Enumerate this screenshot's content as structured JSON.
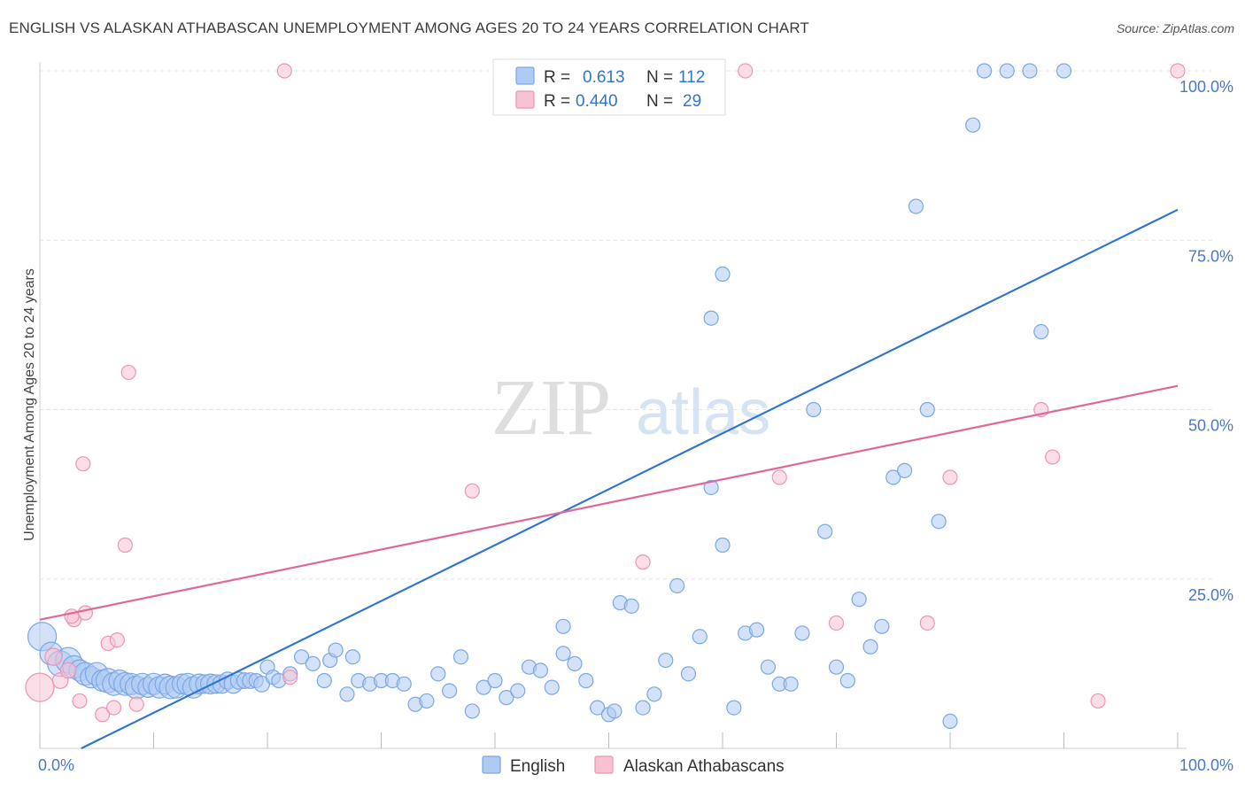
{
  "title": "ENGLISH VS ALASKAN ATHABASCAN UNEMPLOYMENT AMONG AGES 20 TO 24 YEARS CORRELATION CHART",
  "source": "Source: ZipAtlas.com",
  "watermark": {
    "part1": "ZIP",
    "part2": "atlas"
  },
  "colors": {
    "english_fill": "#aecbf3",
    "english_stroke": "#7aa7e6",
    "english_line": "#2f74d0",
    "alaskan_fill": "#f7c3d3",
    "alaskan_stroke": "#ef94b2",
    "alaskan_line": "#e0679a",
    "axis_text": "#4a78c5"
  },
  "legend": {
    "rows": [
      {
        "r_label": "R =",
        "r_value": "0.613",
        "n_label": "N =",
        "n_value": "112"
      },
      {
        "r_label": "R =",
        "r_value": "0.440",
        "n_label": "N =",
        "n_value": "29"
      }
    ]
  },
  "bottom_legend": [
    "English",
    "Alaskan Athabascans"
  ],
  "chart_data": {
    "type": "scatter",
    "title": "ENGLISH VS ALASKAN ATHABASCAN UNEMPLOYMENT AMONG AGES 20 TO 24 YEARS CORRELATION CHART",
    "xlabel": "",
    "ylabel": "Unemployment Among Ages 20 to 24 years",
    "xlim": [
      0,
      100
    ],
    "ylim": [
      0,
      100
    ],
    "x_tick_labels": [
      "0.0%",
      "100.0%"
    ],
    "y_tick_labels": [
      "25.0%",
      "50.0%",
      "75.0%",
      "100.0%"
    ],
    "y_ticks": [
      25,
      50,
      75,
      100
    ],
    "grid": true,
    "legend_position": "top-center",
    "series": [
      {
        "name": "English",
        "r": 0.613,
        "n": 112,
        "trend": {
          "x": [
            0,
            100
          ],
          "y": [
            -3,
            79.5
          ]
        },
        "points": [
          [
            0.2,
            16.5,
            2
          ],
          [
            1,
            14,
            1.6
          ],
          [
            1.8,
            12.5,
            1.8
          ],
          [
            2.5,
            13,
            1.8
          ],
          [
            3,
            12,
            1.6
          ],
          [
            3.5,
            11.5,
            1.5
          ],
          [
            4,
            11,
            1.6
          ],
          [
            4.5,
            10.5,
            1.5
          ],
          [
            5,
            11,
            1.6
          ],
          [
            5.5,
            10,
            1.5
          ],
          [
            6,
            10,
            1.7
          ],
          [
            6.5,
            9.5,
            1.6
          ],
          [
            7,
            10,
            1.5
          ],
          [
            7.5,
            9.5,
            1.6
          ],
          [
            8,
            9.5,
            1.5
          ],
          [
            8.5,
            9,
            1.6
          ],
          [
            9,
            9.5,
            1.5
          ],
          [
            9.5,
            9,
            1.4
          ],
          [
            10,
            9.5,
            1.5
          ],
          [
            10.5,
            9,
            1.5
          ],
          [
            11,
            9.5,
            1.4
          ],
          [
            11.5,
            9,
            1.6
          ],
          [
            12,
            9,
            1.5
          ],
          [
            12.5,
            9.5,
            1.4
          ],
          [
            13,
            9.5,
            1.5
          ],
          [
            13.5,
            9,
            1.5
          ],
          [
            14,
            9.5,
            1.4
          ],
          [
            14.5,
            9.5,
            1.3
          ],
          [
            15,
            9.5,
            1.4
          ],
          [
            15.5,
            9.5,
            1.3
          ],
          [
            16,
            9.5,
            1.3
          ],
          [
            16.5,
            10,
            1.2
          ],
          [
            17,
            9.5,
            1.3
          ],
          [
            17.5,
            10,
            1.2
          ],
          [
            18,
            10,
            1.1
          ],
          [
            18.5,
            10,
            1.1
          ],
          [
            19,
            10,
            1
          ],
          [
            19.5,
            9.5,
            1.1
          ],
          [
            20,
            12,
            1
          ],
          [
            20.5,
            10.5,
            1
          ],
          [
            21,
            10,
            1
          ],
          [
            22,
            11,
            1
          ],
          [
            23,
            13.5,
            1
          ],
          [
            24,
            12.5,
            1
          ],
          [
            25,
            10,
            1
          ],
          [
            25.5,
            13,
            1
          ],
          [
            26,
            14.5,
            1
          ],
          [
            27,
            8,
            1
          ],
          [
            27.5,
            13.5,
            1
          ],
          [
            28,
            10,
            1
          ],
          [
            29,
            9.5,
            1
          ],
          [
            30,
            10,
            1
          ],
          [
            31,
            10,
            1
          ],
          [
            32,
            9.5,
            1
          ],
          [
            33,
            6.5,
            1
          ],
          [
            34,
            7,
            1
          ],
          [
            35,
            11,
            1
          ],
          [
            36,
            8.5,
            1
          ],
          [
            37,
            13.5,
            1
          ],
          [
            38,
            5.5,
            1
          ],
          [
            39,
            9,
            1
          ],
          [
            40,
            10,
            1
          ],
          [
            41,
            7.5,
            1
          ],
          [
            42,
            8.5,
            1
          ],
          [
            43,
            12,
            1
          ],
          [
            44,
            11.5,
            1
          ],
          [
            45,
            9,
            1
          ],
          [
            46,
            18,
            1
          ],
          [
            47,
            12.5,
            1
          ],
          [
            48,
            10,
            1
          ],
          [
            49,
            6,
            1
          ],
          [
            50,
            5,
            1
          ],
          [
            50.5,
            5.5,
            1
          ],
          [
            51,
            21.5,
            1
          ],
          [
            52,
            21,
            1
          ],
          [
            53,
            6,
            1
          ],
          [
            54,
            8,
            1
          ],
          [
            55,
            13,
            1
          ],
          [
            56,
            24,
            1
          ],
          [
            57,
            11,
            1
          ],
          [
            58,
            16.5,
            1
          ],
          [
            59,
            38.5,
            1
          ],
          [
            60,
            30,
            1
          ],
          [
            61,
            6,
            1
          ],
          [
            62,
            17,
            1
          ],
          [
            63,
            17.5,
            1
          ],
          [
            64,
            12,
            1
          ],
          [
            65,
            9.5,
            1
          ],
          [
            66,
            9.5,
            1
          ],
          [
            67,
            17,
            1
          ],
          [
            68,
            50,
            1
          ],
          [
            69,
            32,
            1
          ],
          [
            70,
            12,
            1
          ],
          [
            71,
            10,
            1
          ],
          [
            72,
            22,
            1
          ],
          [
            73,
            15,
            1
          ],
          [
            74,
            18,
            1
          ],
          [
            75,
            40,
            1
          ],
          [
            76,
            41,
            1
          ],
          [
            77,
            80,
            1
          ],
          [
            78,
            50,
            1
          ],
          [
            79,
            33.5,
            1
          ],
          [
            80,
            4,
            1
          ],
          [
            82,
            92,
            1
          ],
          [
            83,
            100,
            1
          ],
          [
            85,
            100,
            1
          ],
          [
            87,
            100,
            1
          ],
          [
            90,
            100,
            1
          ],
          [
            88,
            61.5,
            1
          ],
          [
            59,
            63.5,
            1
          ],
          [
            60,
            70,
            1
          ],
          [
            46,
            14,
            1
          ]
        ]
      },
      {
        "name": "Alaskan Athabascans",
        "r": 0.44,
        "n": 29,
        "trend": {
          "x": [
            0,
            100
          ],
          "y": [
            19,
            53.5
          ]
        },
        "points": [
          [
            0,
            9,
            2
          ],
          [
            1.2,
            13.5,
            1.2
          ],
          [
            1.8,
            10,
            1.1
          ],
          [
            2.5,
            11.5,
            1.1
          ],
          [
            3,
            19,
            1
          ],
          [
            3.5,
            7,
            1
          ],
          [
            4,
            20,
            1
          ],
          [
            5.5,
            5,
            1
          ],
          [
            6,
            15.5,
            1
          ],
          [
            6.5,
            6,
            1
          ],
          [
            3.8,
            42,
            1
          ],
          [
            7.8,
            55.5,
            1
          ],
          [
            7.5,
            30,
            1
          ],
          [
            22,
            10.5,
            1
          ],
          [
            21.5,
            100,
            1
          ],
          [
            38,
            38,
            1
          ],
          [
            53,
            27.5,
            1
          ],
          [
            62,
            100,
            1
          ],
          [
            65,
            40,
            1
          ],
          [
            70,
            18.5,
            1
          ],
          [
            78,
            18.5,
            1
          ],
          [
            80,
            40,
            1
          ],
          [
            88,
            50,
            1
          ],
          [
            89,
            43,
            1
          ],
          [
            93,
            7,
            1
          ],
          [
            100,
            100,
            1
          ],
          [
            6.8,
            16,
            1
          ],
          [
            2.8,
            19.5,
            1
          ],
          [
            8.5,
            6.5,
            1
          ]
        ]
      }
    ]
  }
}
